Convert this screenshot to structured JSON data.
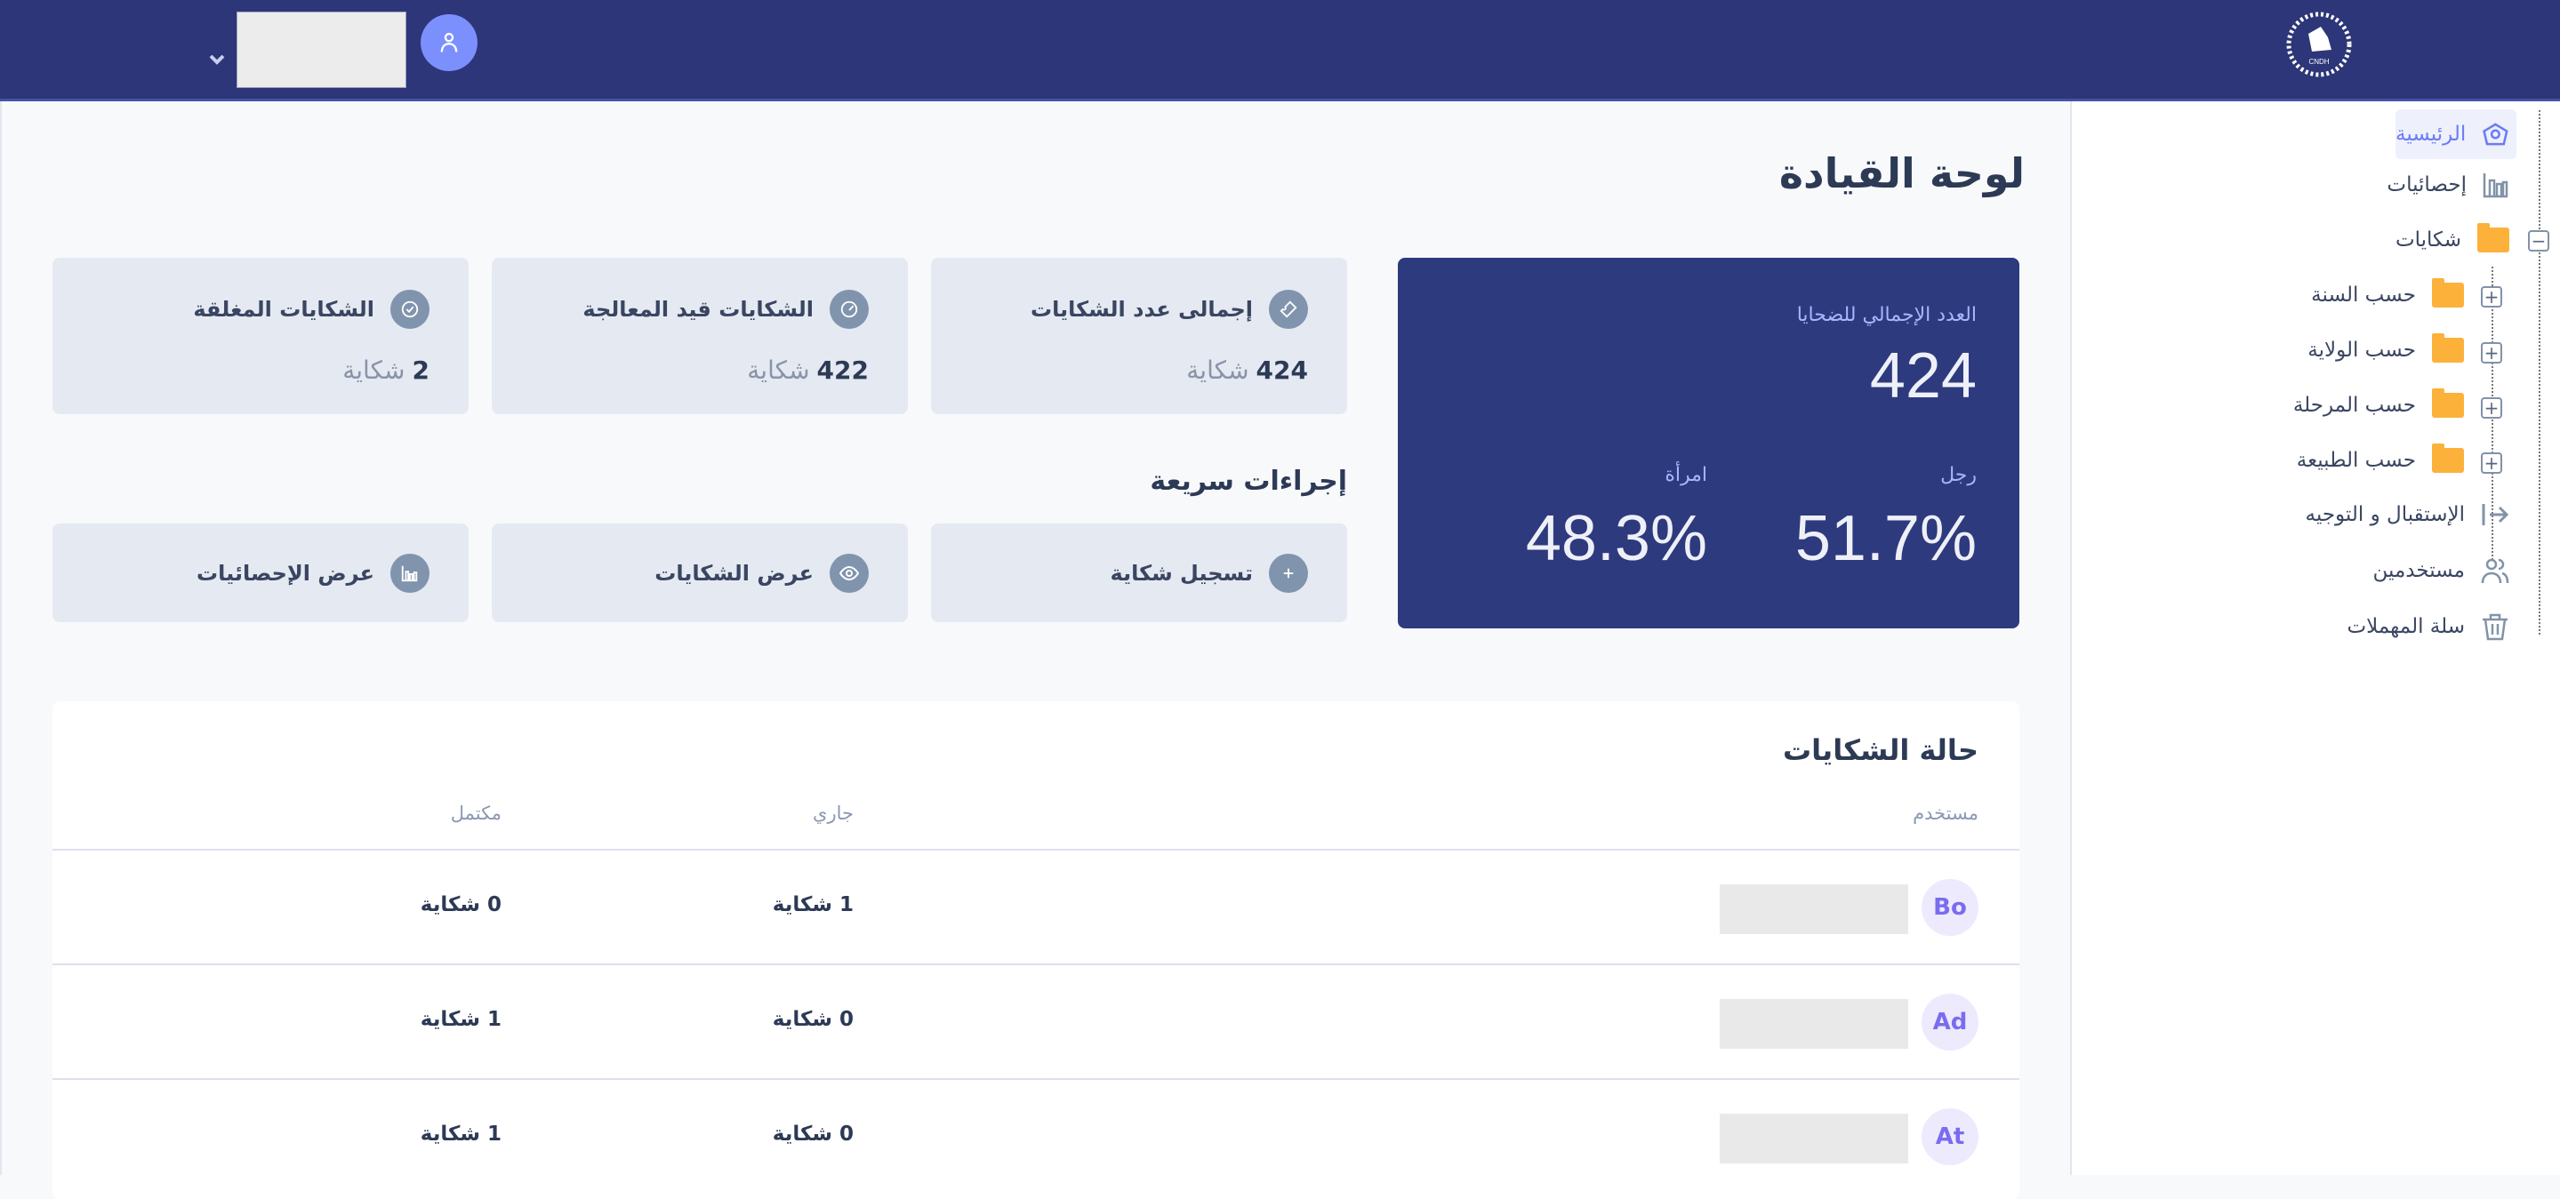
{
  "header": {
    "user_menu_chevron": "chevron-down-icon",
    "avatar_icon": "user-icon",
    "logo_text": "CNDH"
  },
  "colors": {
    "topbar": "#2c3678",
    "hero": "#2e3a7e",
    "accent": "#6b7cf5",
    "folder": "#fcb13b",
    "card": "#e5e9f2"
  },
  "sidebar": {
    "items": [
      {
        "label": "الرئيسية",
        "icon": "home-icon",
        "active": true
      },
      {
        "label": "إحصائيات",
        "icon": "bar-chart-icon"
      },
      {
        "label": "شكايات",
        "icon": "folder-icon",
        "expanded": true
      },
      {
        "label": "حسب السنة",
        "icon": "folder-icon",
        "sub": true
      },
      {
        "label": "حسب الولاية",
        "icon": "folder-icon",
        "sub": true
      },
      {
        "label": "حسب المرحلة",
        "icon": "folder-icon",
        "sub": true
      },
      {
        "label": "حسب الطبيعة",
        "icon": "folder-icon",
        "sub": true
      },
      {
        "label": "الإستقبال و التوجيه",
        "icon": "arrow-right-to-line-icon"
      },
      {
        "label": "مستخدمين",
        "icon": "users-icon"
      },
      {
        "label": "سلة المهملات",
        "icon": "trash-icon"
      }
    ]
  },
  "page": {
    "title": "لوحة القيادة"
  },
  "hero": {
    "label": "العدد الإجمالي للضحايا",
    "total": "424",
    "men_label": "رجل",
    "men_pct": "51.7%",
    "women_label": "امرأة",
    "women_pct": "48.3%"
  },
  "stats": [
    {
      "title": "إجمالى عدد الشكايات",
      "value": "424",
      "unit": "شكاية",
      "icon": "ticket-icon"
    },
    {
      "title": "الشكايات قيد المعالجة",
      "value": "422",
      "unit": "شكاية",
      "icon": "gauge-icon"
    },
    {
      "title": "الشكايات المغلقة",
      "value": "2",
      "unit": "شكاية",
      "icon": "check-circle-icon"
    }
  ],
  "quick_actions": {
    "title": "إجراءات سريعة",
    "items": [
      {
        "label": "تسجيل شكاية",
        "icon": "plus-icon"
      },
      {
        "label": "عرض الشكايات",
        "icon": "eye-icon"
      },
      {
        "label": "عرض الإحصائيات",
        "icon": "bar-chart-icon"
      }
    ]
  },
  "status_table": {
    "title": "حالة الشكايات",
    "columns": [
      "مستخدم",
      "جاري",
      "مكتمل"
    ],
    "rows": [
      {
        "initials": "Bo",
        "ongoing": "1 شكاية",
        "done": "0 شكاية"
      },
      {
        "initials": "Ad",
        "ongoing": "0 شكاية",
        "done": "1 شكاية"
      },
      {
        "initials": "At",
        "ongoing": "0 شكاية",
        "done": "1 شكاية"
      }
    ]
  }
}
